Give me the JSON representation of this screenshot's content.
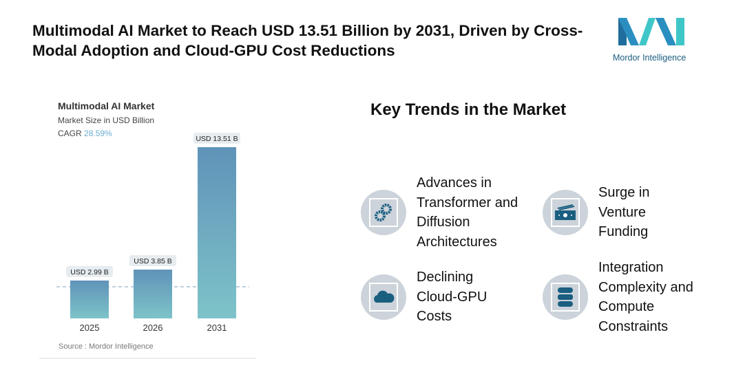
{
  "header": {
    "title": "Multimodal AI Market to Reach USD 13.51 Billion by 2031, Driven by Cross-Modal Adoption and Cloud-GPU Cost Reductions",
    "logo_text": "Mordor Intelligence"
  },
  "chart_data": {
    "type": "bar",
    "title": "Multimodal AI Market",
    "subtitle": "Market Size in USD Billion",
    "cagr_label": "CAGR",
    "cagr_value": "28.59%",
    "categories": [
      "2025",
      "2026",
      "2031"
    ],
    "values": [
      2.99,
      3.85,
      13.51
    ],
    "data_labels": [
      "USD 2.99 B",
      "USD 3.85 B",
      "USD 13.51 B"
    ],
    "source": "Source :  Mordor Intelligence",
    "colors": {
      "bar_top": "#5f93b8",
      "bar_bottom": "#7ec3c9"
    }
  },
  "trends": {
    "heading": "Key Trends in the Market",
    "items": [
      {
        "label": "Advances in Transformer and Diffusion Architectures",
        "icon": "gears-icon"
      },
      {
        "label": "Surge in Venture Funding",
        "icon": "money-icon"
      },
      {
        "label": "Declining Cloud-GPU Costs",
        "icon": "cloud-icon"
      },
      {
        "label": "Integration Complexity and Compute Constraints",
        "icon": "database-icon"
      }
    ]
  },
  "colors": {
    "icon": "#1a5e80",
    "circle": "#ccd3da"
  }
}
